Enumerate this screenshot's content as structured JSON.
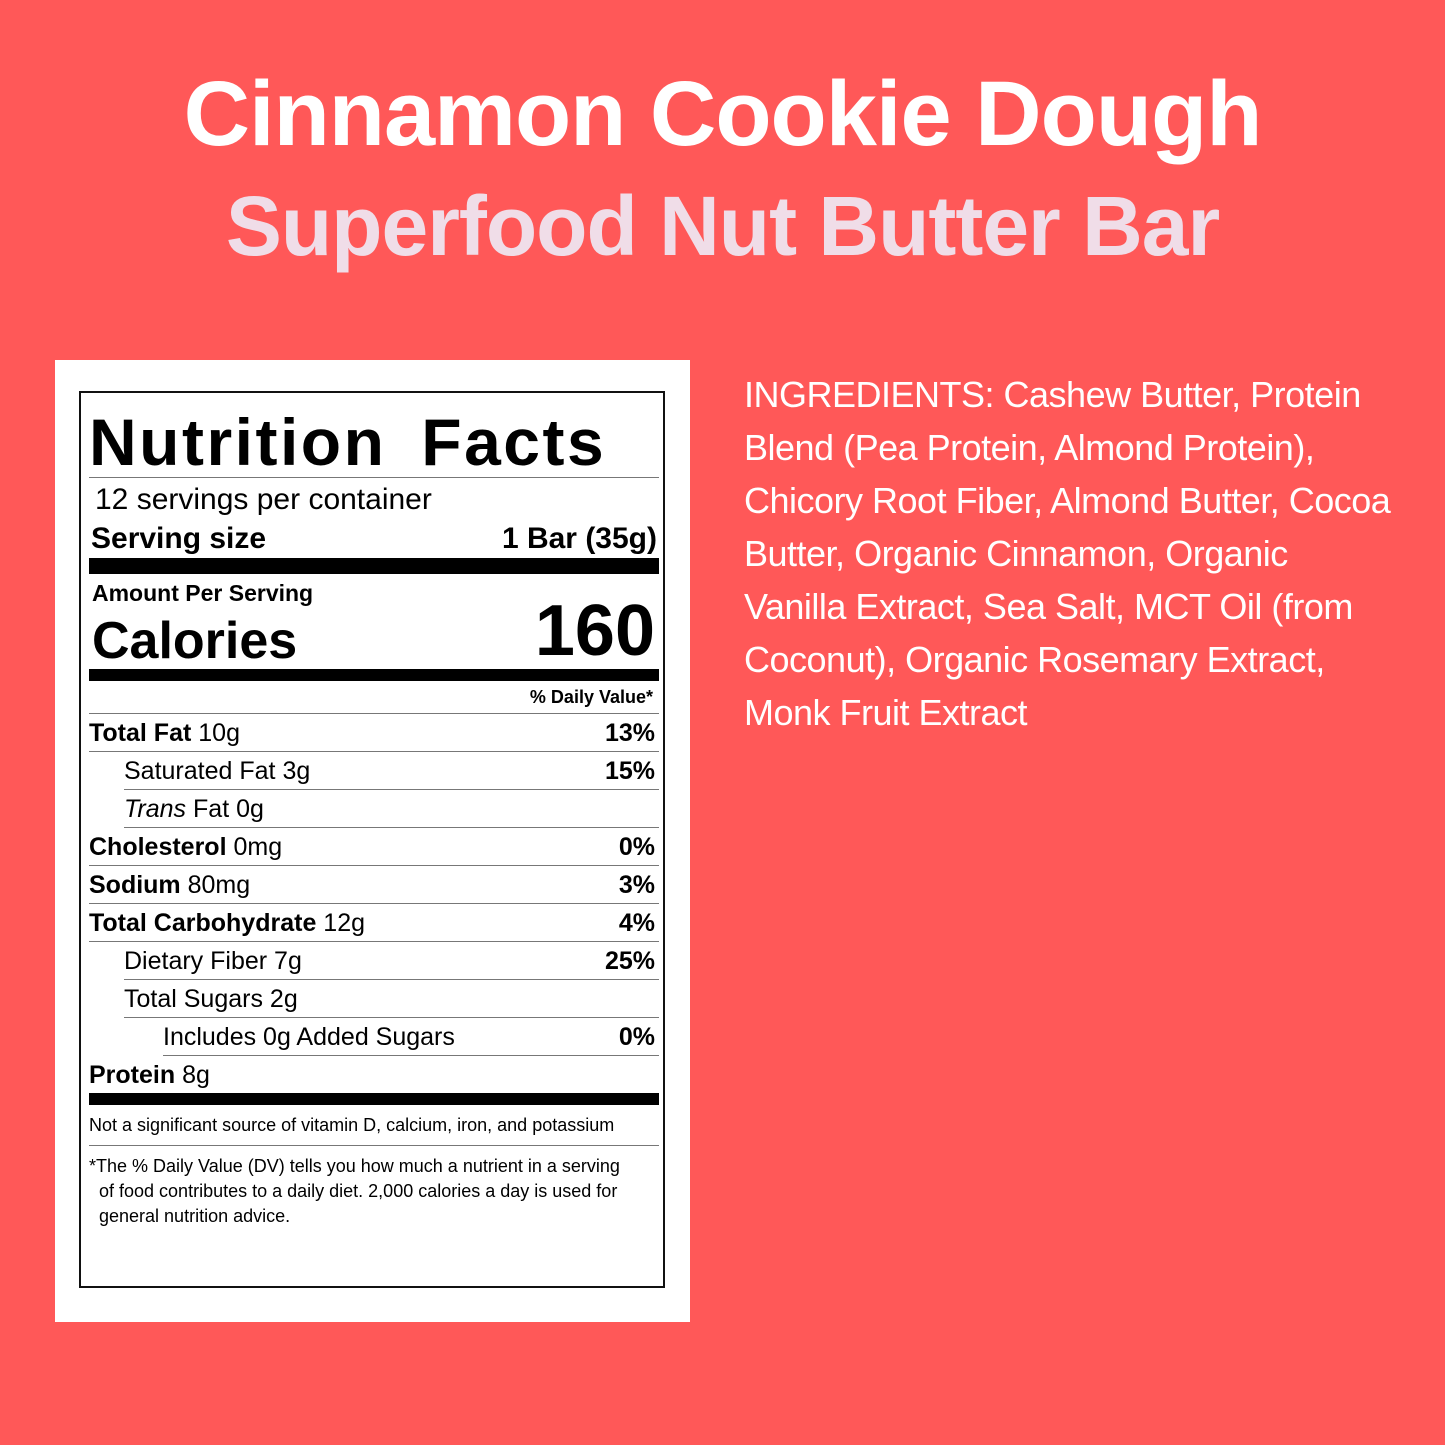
{
  "title": {
    "line1": "Cinnamon Cookie Dough",
    "line2": "Superfood Nut Butter Bar"
  },
  "colors": {
    "background": "#FF5858",
    "title": "#FFFFFF",
    "subtitle": "#F0DDE8"
  },
  "nutrition": {
    "heading": "Nutrition Facts",
    "servings": "12 servings per container",
    "serving_size_label": "Serving size",
    "serving_size_value": "1 Bar (35g)",
    "amount_per_serving": "Amount Per Serving",
    "calories_label": "Calories",
    "calories_value": "160",
    "dv_header": "% Daily Value*",
    "rows": [
      {
        "name": "Total Fat",
        "amount": "10g",
        "dv": "13%"
      },
      {
        "name": "Saturated Fat",
        "amount": "3g",
        "dv": "15%"
      },
      {
        "name_italic": "Trans",
        "name": "Fat",
        "amount": "0g",
        "dv": ""
      },
      {
        "name": "Cholesterol",
        "amount": "0mg",
        "dv": "0%"
      },
      {
        "name": "Sodium",
        "amount": "80mg",
        "dv": "3%"
      },
      {
        "name": "Total Carbohydrate",
        "amount": "12g",
        "dv": "4%"
      },
      {
        "name": "Dietary Fiber",
        "amount": "7g",
        "dv": "25%"
      },
      {
        "name": "Total Sugars",
        "amount": "2g",
        "dv": ""
      },
      {
        "name": "Includes 0g Added Sugars",
        "amount": "",
        "dv": "0%"
      },
      {
        "name": "Protein",
        "amount": "8g",
        "dv": ""
      }
    ],
    "footnote1": "Not a significant source of vitamin D, calcium, iron, and potassium",
    "footnote2": "*The % Daily Value (DV) tells you how much a nutrient in a serving of food contributes to a daily diet. 2,000 calories a day is used for general nutrition advice."
  },
  "ingredients": "INGREDIENTS: Cashew Butter, Protein Blend (Pea Protein, Almond Protein), Chicory Root Fiber, Almond Butter, Cocoa Butter, Organic Cinnamon, Organic Vanilla Extract, Sea Salt, MCT Oil (from Coconut), Organic Rosemary Extract, Monk Fruit Extract"
}
